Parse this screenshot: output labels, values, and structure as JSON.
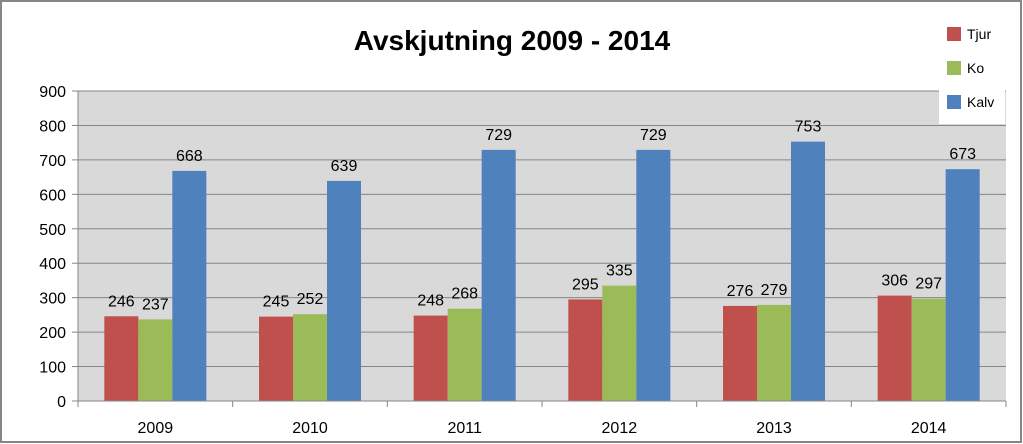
{
  "chart_data": {
    "type": "bar",
    "title": "Avskjutning 2009 - 2014",
    "categories": [
      "2009",
      "2010",
      "2011",
      "2012",
      "2013",
      "2014"
    ],
    "series": [
      {
        "name": "Tjur",
        "color": "#C0504D",
        "values": [
          246,
          245,
          248,
          295,
          276,
          306
        ]
      },
      {
        "name": "Ko",
        "color": "#9BBB59",
        "values": [
          237,
          252,
          268,
          335,
          279,
          297
        ]
      },
      {
        "name": "Kalv",
        "color": "#4F81BD",
        "values": [
          668,
          639,
          729,
          729,
          753,
          673
        ]
      }
    ],
    "ylim": [
      0,
      900
    ],
    "yticks": [
      0,
      100,
      200,
      300,
      400,
      500,
      600,
      700,
      800,
      900
    ],
    "grid": true,
    "legend_position": "right",
    "plot_background": "#D9D9D9"
  }
}
